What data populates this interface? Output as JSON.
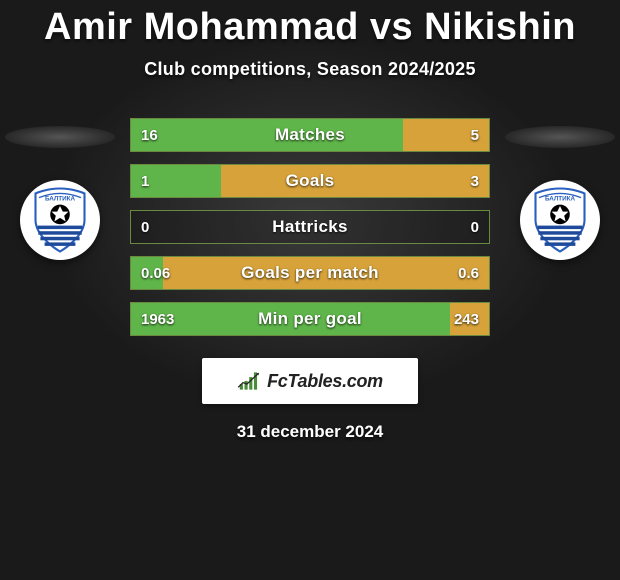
{
  "title": "Amir Mohammad vs Nikishin",
  "subtitle": "Club competitions, Season 2024/2025",
  "date": "31 december 2024",
  "logo_text": "FcTables.com",
  "colors": {
    "left_bar": "#5fb54a",
    "right_bar": "#d7a23a",
    "row_border": "#6a8a3f",
    "badge_blue": "#2a5fbf",
    "badge_stripe": "#1e4a9c"
  },
  "stats": [
    {
      "label": "Matches",
      "left_val": "16",
      "right_val": "5",
      "left_pct": 76,
      "right_pct": 24
    },
    {
      "label": "Goals",
      "left_val": "1",
      "right_val": "3",
      "left_pct": 25,
      "right_pct": 75
    },
    {
      "label": "Hattricks",
      "left_val": "0",
      "right_val": "0",
      "left_pct": 0,
      "right_pct": 0
    },
    {
      "label": "Goals per match",
      "left_val": "0.06",
      "right_val": "0.6",
      "left_pct": 9,
      "right_pct": 91
    },
    {
      "label": "Min per goal",
      "left_val": "1963",
      "right_val": "243",
      "left_pct": 89,
      "right_pct": 11
    }
  ]
}
